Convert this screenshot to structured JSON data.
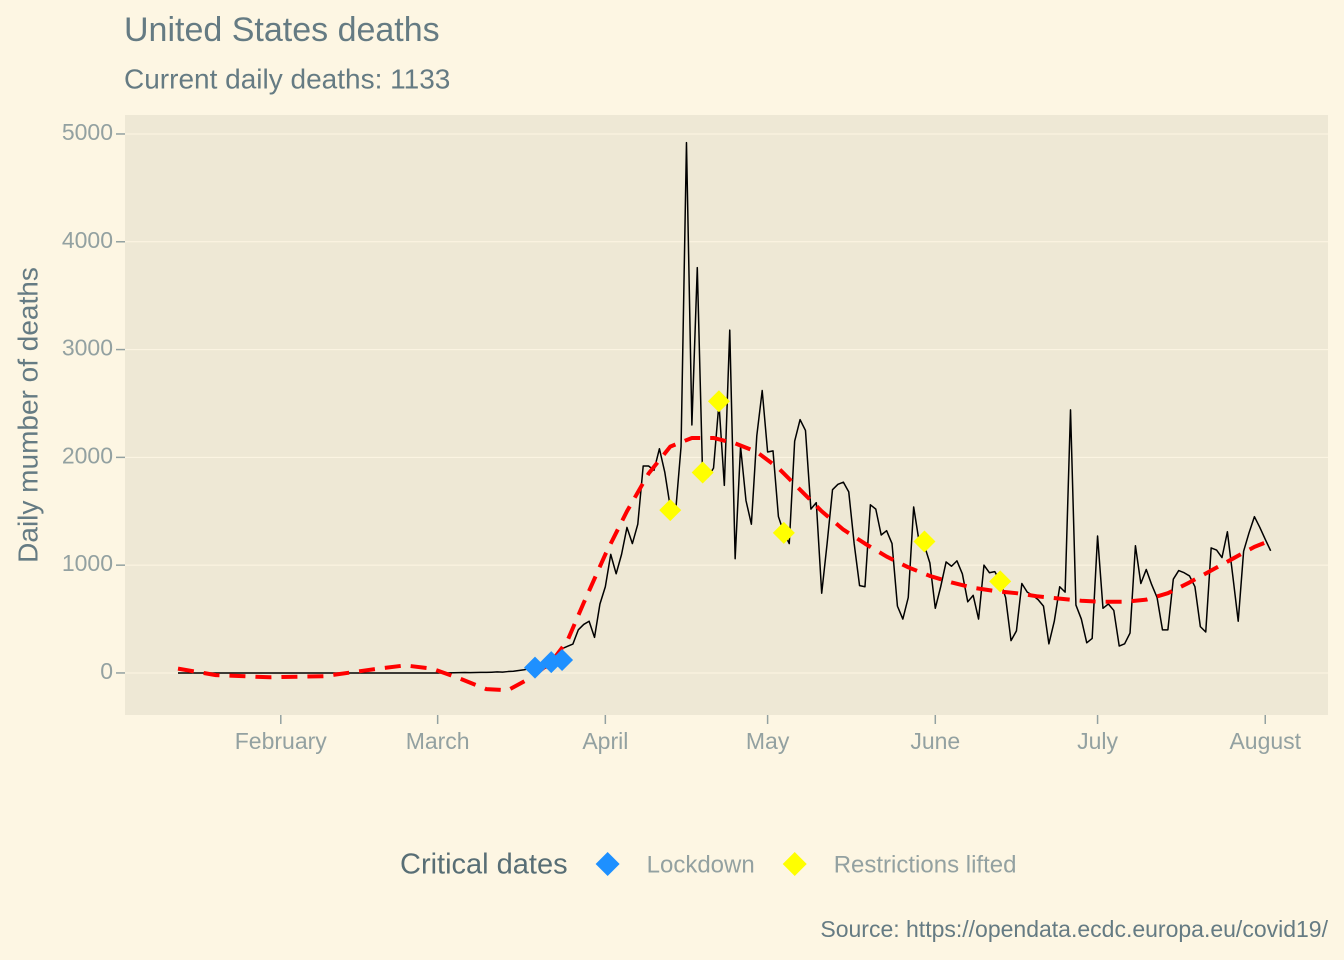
{
  "chart_data": {
    "type": "line",
    "title": "United States deaths",
    "subtitle": "Current daily deaths:  1133",
    "y_label": "Daily mumber of deaths",
    "caption": "Source: https://opendata.ecdc.europa.eu/covid19/",
    "legend_title": "Critical dates",
    "legend": "bottom",
    "grid": true,
    "xlim": [
      3.2,
      225.6
    ],
    "ylim": [
      -390,
      5176
    ],
    "xticks": [
      {
        "value": 32,
        "label": "February"
      },
      {
        "value": 61,
        "label": "March"
      },
      {
        "value": 92,
        "label": "April"
      },
      {
        "value": 122,
        "label": "May"
      },
      {
        "value": 153,
        "label": "June"
      },
      {
        "value": 183,
        "label": "July"
      },
      {
        "value": 214,
        "label": "August"
      }
    ],
    "yticks": [
      0,
      1000,
      2000,
      3000,
      4000,
      5000
    ],
    "series": [
      {
        "color": "#000000",
        "x": [
          13,
          14,
          15,
          16,
          17,
          18,
          19,
          20,
          21,
          22,
          23,
          24,
          25,
          26,
          27,
          28,
          29,
          30,
          31,
          32,
          33,
          34,
          35,
          36,
          37,
          38,
          39,
          40,
          41,
          42,
          43,
          44,
          45,
          46,
          47,
          48,
          49,
          50,
          51,
          52,
          53,
          54,
          55,
          56,
          57,
          58,
          59,
          60,
          61,
          62,
          63,
          64,
          65,
          66,
          67,
          68,
          69,
          70,
          71,
          72,
          73,
          74,
          75,
          76,
          77,
          78,
          79,
          80,
          81,
          82,
          83,
          84,
          85,
          86,
          87,
          88,
          89,
          90,
          91,
          92,
          93,
          94,
          95,
          96,
          97,
          98,
          99,
          100,
          101,
          102,
          103,
          104,
          105,
          106,
          107,
          108,
          109,
          110,
          111,
          112,
          113,
          114,
          115,
          116,
          117,
          118,
          119,
          120,
          121,
          122,
          123,
          124,
          125,
          126,
          127,
          128,
          129,
          130,
          131,
          132,
          133,
          134,
          135,
          136,
          137,
          138,
          139,
          140,
          141,
          142,
          143,
          144,
          145,
          146,
          147,
          148,
          149,
          150,
          151,
          152,
          153,
          154,
          155,
          156,
          157,
          158,
          159,
          160,
          161,
          162,
          163,
          164,
          165,
          166,
          167,
          168,
          169,
          170,
          171,
          172,
          173,
          174,
          175,
          176,
          177,
          178,
          179,
          180,
          181,
          182,
          183,
          184,
          185,
          186,
          187,
          188,
          189,
          190,
          191,
          192,
          193,
          194,
          195,
          196,
          197,
          198,
          199,
          200,
          201,
          202,
          203,
          204,
          205,
          206,
          207,
          208,
          209,
          210,
          211,
          212,
          213,
          214,
          215
        ],
        "values": [
          0,
          0,
          0,
          0,
          0,
          0,
          0,
          0,
          0,
          0,
          0,
          0,
          0,
          0,
          0,
          0,
          0,
          0,
          0,
          0,
          0,
          0,
          0,
          0,
          0,
          0,
          0,
          0,
          0,
          0,
          0,
          0,
          0,
          0,
          0,
          0,
          0,
          0,
          0,
          0,
          0,
          0,
          0,
          0,
          0,
          0,
          0,
          0,
          0,
          1,
          1,
          2,
          3,
          4,
          3,
          4,
          5,
          5,
          7,
          10,
          8,
          13,
          16,
          23,
          30,
          41,
          57,
          49,
          46,
          113,
          141,
          225,
          247,
          268,
          400,
          450,
          480,
          330,
          640,
          800,
          1100,
          920,
          1100,
          1350,
          1200,
          1380,
          1920,
          1920,
          1880,
          2080,
          1860,
          1540,
          1500,
          2100,
          4920,
          2300,
          3760,
          1800,
          1820,
          1900,
          2500,
          1740,
          3180,
          1060,
          2100,
          1600,
          1380,
          2200,
          2620,
          2050,
          2060,
          1450,
          1300,
          1200,
          2150,
          2350,
          2250,
          1520,
          1580,
          740,
          1200,
          1700,
          1750,
          1770,
          1680,
          1200,
          810,
          800,
          1560,
          1520,
          1280,
          1320,
          1200,
          620,
          500,
          700,
          1540,
          1220,
          1180,
          1020,
          600,
          800,
          1030,
          990,
          1040,
          920,
          660,
          720,
          500,
          1000,
          930,
          940,
          850,
          700,
          300,
          390,
          830,
          750,
          720,
          680,
          620,
          270,
          480,
          800,
          750,
          2440,
          630,
          500,
          280,
          320,
          1270,
          600,
          640,
          580,
          250,
          270,
          370,
          1180,
          830,
          960,
          820,
          700,
          400,
          400,
          870,
          950,
          930,
          900,
          800,
          430,
          380,
          1160,
          1140,
          1070,
          1310,
          900,
          480,
          1130,
          1300,
          1450,
          1350,
          1240,
          1133
        ]
      },
      {
        "color": "#ff0000",
        "style": "dashed",
        "x": [
          13,
          20,
          30,
          40,
          50,
          55,
          60,
          65,
          70,
          74,
          78,
          82,
          85,
          88,
          92,
          96,
          100,
          104,
          108,
          112,
          116,
          120,
          124,
          128,
          132,
          136,
          140,
          144,
          148,
          152,
          156,
          160,
          164,
          168,
          172,
          176,
          180,
          184,
          188,
          192,
          196,
          200,
          204,
          208,
          212,
          215
        ],
        "values": [
          40,
          -20,
          -40,
          -30,
          40,
          70,
          40,
          -50,
          -150,
          -160,
          -50,
          100,
          300,
          650,
          1100,
          1500,
          1850,
          2100,
          2180,
          2180,
          2130,
          2050,
          1900,
          1700,
          1500,
          1330,
          1200,
          1080,
          980,
          900,
          840,
          790,
          760,
          740,
          710,
          690,
          670,
          660,
          660,
          680,
          740,
          840,
          950,
          1060,
          1170,
          1230
        ]
      }
    ],
    "markers": [
      {
        "name": "Lockdown",
        "color": "#1e90ff",
        "x": [
          79,
          82,
          84
        ],
        "values": [
          50,
          100,
          120
        ]
      },
      {
        "name": "Restrictions lifted",
        "color": "#ffff00",
        "x": [
          104,
          110,
          113,
          125,
          151,
          165
        ],
        "values": [
          1510,
          1860,
          2520,
          1300,
          1220,
          850
        ]
      }
    ]
  }
}
